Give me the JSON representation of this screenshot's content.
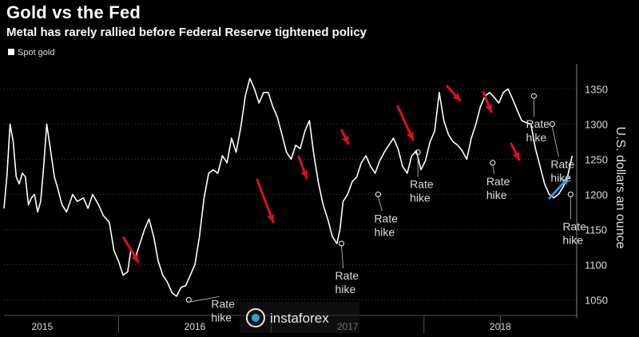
{
  "title": "Gold vs the Fed",
  "subtitle": "Metal has rarely rallied before Federal Reserve tightened policy",
  "legend_label": "Spot gold",
  "watermark_text": "instaforex",
  "colors": {
    "line": "#ffffff",
    "arrow_red": "#e0101a",
    "arrow_blue": "#3a8fe0",
    "grid": "#444444",
    "background": "#000000"
  },
  "chart_data": {
    "type": "line",
    "title": "Gold vs the Fed",
    "subtitle": "Metal has rarely rallied before Federal Reserve tightened policy",
    "ylabel": "U.S. dollars an ounce",
    "ylim": [
      1030,
      1380
    ],
    "xlim": [
      2014.75,
      2018.5
    ],
    "y_ticks": [
      1050,
      1100,
      1150,
      1200,
      1250,
      1300,
      1350
    ],
    "x_tick_labels": [
      "2015",
      "2016",
      "2017",
      "2018"
    ],
    "x_tick_positions": [
      2015.0,
      2016.0,
      2017.0,
      2018.0
    ],
    "grid": "horizontal dotted",
    "legend": "top-left",
    "series": [
      {
        "name": "Spot gold",
        "x": [
          2014.75,
          2014.77,
          2014.79,
          2014.81,
          2014.83,
          2014.85,
          2014.87,
          2014.89,
          2014.91,
          2014.93,
          2014.95,
          2014.97,
          2014.99,
          2015.01,
          2015.03,
          2015.05,
          2015.08,
          2015.1,
          2015.13,
          2015.16,
          2015.2,
          2015.23,
          2015.27,
          2015.3,
          2015.33,
          2015.37,
          2015.4,
          2015.44,
          2015.47,
          2015.5,
          2015.53,
          2015.56,
          2015.58,
          2015.61,
          2015.64,
          2015.67,
          2015.7,
          2015.73,
          2015.76,
          2015.79,
          2015.82,
          2015.85,
          2015.88,
          2015.91,
          2015.94,
          2015.97,
          2016.0,
          2016.03,
          2016.06,
          2016.09,
          2016.12,
          2016.15,
          2016.18,
          2016.21,
          2016.24,
          2016.27,
          2016.3,
          2016.33,
          2016.36,
          2016.39,
          2016.42,
          2016.45,
          2016.48,
          2016.51,
          2016.54,
          2016.57,
          2016.6,
          2016.63,
          2016.66,
          2016.69,
          2016.72,
          2016.75,
          2016.78,
          2016.81,
          2016.84,
          2016.87,
          2016.9,
          2016.93,
          2016.95,
          2016.97,
          2017.0,
          2017.03,
          2017.06,
          2017.09,
          2017.12,
          2017.15,
          2017.18,
          2017.21,
          2017.24,
          2017.27,
          2017.3,
          2017.33,
          2017.36,
          2017.39,
          2017.42,
          2017.45,
          2017.48,
          2017.51,
          2017.54,
          2017.57,
          2017.6,
          2017.63,
          2017.66,
          2017.69,
          2017.72,
          2017.75,
          2017.78,
          2017.81,
          2017.84,
          2017.87,
          2017.9,
          2017.93,
          2017.96,
          2017.99,
          2018.02,
          2018.05,
          2018.08,
          2018.11,
          2018.14,
          2018.17,
          2018.2,
          2018.23,
          2018.26,
          2018.29,
          2018.32,
          2018.35,
          2018.38,
          2018.41,
          2018.44,
          2018.47
        ],
        "y": [
          1180,
          1228,
          1300,
          1275,
          1225,
          1215,
          1230,
          1225,
          1185,
          1195,
          1200,
          1175,
          1190,
          1240,
          1300,
          1270,
          1225,
          1210,
          1185,
          1175,
          1200,
          1190,
          1195,
          1180,
          1200,
          1185,
          1170,
          1160,
          1120,
          1105,
          1085,
          1090,
          1120,
          1110,
          1130,
          1150,
          1165,
          1140,
          1105,
          1085,
          1075,
          1060,
          1055,
          1068,
          1070,
          1085,
          1100,
          1140,
          1195,
          1230,
          1235,
          1230,
          1255,
          1245,
          1280,
          1260,
          1295,
          1340,
          1365,
          1350,
          1330,
          1345,
          1345,
          1325,
          1310,
          1285,
          1260,
          1250,
          1270,
          1265,
          1290,
          1305,
          1255,
          1215,
          1185,
          1165,
          1140,
          1130,
          1150,
          1190,
          1200,
          1218,
          1225,
          1245,
          1255,
          1240,
          1230,
          1248,
          1260,
          1270,
          1280,
          1265,
          1240,
          1230,
          1255,
          1262,
          1235,
          1248,
          1275,
          1290,
          1345,
          1305,
          1285,
          1275,
          1270,
          1262,
          1250,
          1280,
          1300,
          1325,
          1340,
          1345,
          1338,
          1330,
          1345,
          1350,
          1336,
          1320,
          1305,
          1302,
          1300,
          1265,
          1240,
          1215,
          1200,
          1195,
          1200,
          1210,
          1225,
          1255
        ]
      }
    ],
    "annotations": [
      {
        "text": [
          "Rate",
          "hike"
        ],
        "x": 2015.96,
        "y": 1050
      },
      {
        "text": [
          "Rate",
          "hike"
        ],
        "x": 2016.96,
        "y": 1130
      },
      {
        "text": [
          "Rate",
          "hike"
        ],
        "x": 2017.2,
        "y": 1200
      },
      {
        "text": [
          "Rate",
          "hike"
        ],
        "x": 2017.46,
        "y": 1260
      },
      {
        "text": [
          "Rate",
          "hike"
        ],
        "x": 2017.95,
        "y": 1245
      },
      {
        "text": [
          "Rate",
          "hike"
        ],
        "x": 2018.22,
        "y": 1340
      },
      {
        "text": [
          "Rate",
          "hike"
        ],
        "x": 2018.34,
        "y": 1300
      },
      {
        "text": [
          "Rate",
          "hike"
        ],
        "x": 2018.46,
        "y": 1200
      }
    ]
  }
}
